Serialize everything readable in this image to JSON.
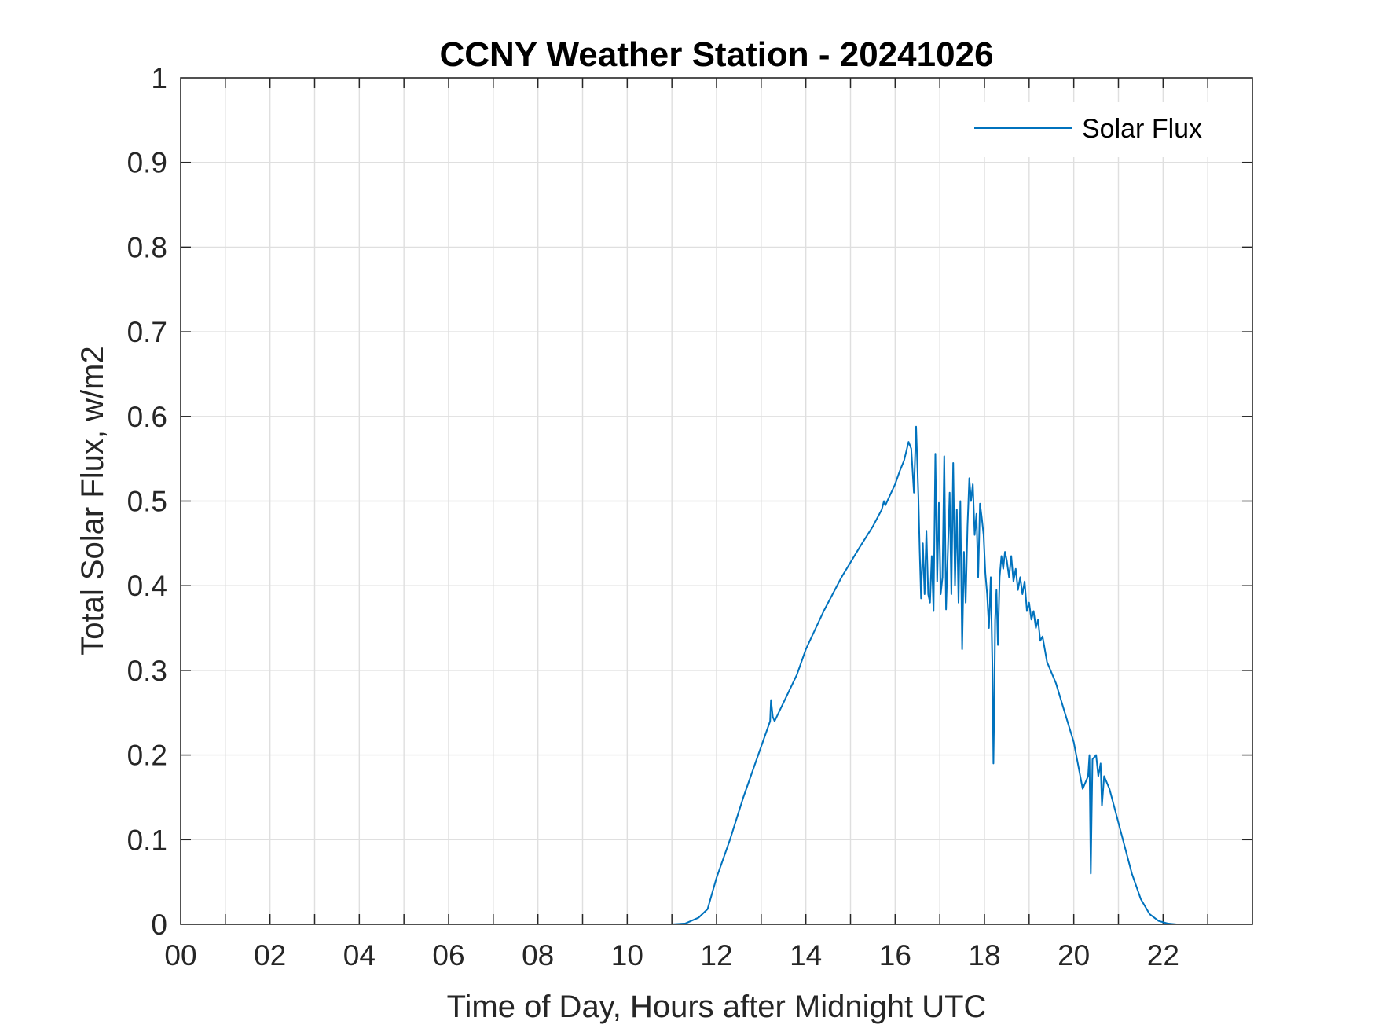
{
  "chart_data": {
    "type": "line",
    "title": "CCNY Weather Station - 20241026",
    "xlabel": "Time of Day, Hours after Midnight UTC",
    "ylabel": "Total Solar Flux, w/m2",
    "xlim": [
      0,
      24
    ],
    "ylim": [
      0,
      1
    ],
    "xticks": [
      0,
      2,
      4,
      6,
      8,
      10,
      12,
      14,
      16,
      18,
      20,
      22
    ],
    "xtick_labels": [
      "00",
      "02",
      "04",
      "06",
      "08",
      "10",
      "12",
      "14",
      "16",
      "18",
      "20",
      "22"
    ],
    "yticks": [
      0,
      0.1,
      0.2,
      0.3,
      0.4,
      0.5,
      0.6,
      0.7,
      0.8,
      0.9,
      1
    ],
    "ytick_labels": [
      "0",
      "0.1",
      "0.2",
      "0.3",
      "0.4",
      "0.5",
      "0.6",
      "0.7",
      "0.8",
      "0.9",
      "1"
    ],
    "grid": true,
    "legend_position": "top-right",
    "series": [
      {
        "name": "Solar Flux",
        "color": "#0072BD",
        "x": [
          0,
          11.0,
          11.3,
          11.6,
          11.8,
          12.0,
          12.3,
          12.6,
          12.9,
          13.0,
          13.2,
          13.22,
          13.26,
          13.3,
          13.5,
          13.8,
          14.0,
          14.4,
          14.8,
          15.2,
          15.5,
          15.7,
          15.75,
          15.78,
          16.0,
          16.1,
          16.2,
          16.3,
          16.36,
          16.42,
          16.47,
          16.52,
          16.55,
          16.58,
          16.62,
          16.66,
          16.7,
          16.74,
          16.78,
          16.82,
          16.86,
          16.9,
          16.94,
          16.98,
          17.02,
          17.06,
          17.1,
          17.14,
          17.18,
          17.22,
          17.26,
          17.3,
          17.34,
          17.38,
          17.42,
          17.46,
          17.5,
          17.54,
          17.58,
          17.62,
          17.66,
          17.7,
          17.74,
          17.78,
          17.82,
          17.86,
          17.9,
          17.94,
          17.98,
          18.02,
          18.06,
          18.1,
          18.14,
          18.18,
          18.2,
          18.22,
          18.24,
          18.27,
          18.3,
          18.34,
          18.38,
          18.42,
          18.46,
          18.5,
          18.55,
          18.6,
          18.65,
          18.7,
          18.75,
          18.8,
          18.85,
          18.9,
          18.95,
          19.0,
          19.05,
          19.1,
          19.15,
          19.2,
          19.25,
          19.3,
          19.4,
          19.6,
          19.8,
          20.0,
          20.2,
          20.32,
          20.35,
          20.38,
          20.4,
          20.42,
          20.5,
          20.55,
          20.6,
          20.63,
          20.68,
          20.8,
          21.0,
          21.3,
          21.5,
          21.7,
          21.9,
          22.1,
          22.3,
          22.6,
          23.0,
          24.0
        ],
        "y": [
          0,
          0,
          0.001,
          0.008,
          0.018,
          0.055,
          0.1,
          0.15,
          0.195,
          0.21,
          0.24,
          0.265,
          0.245,
          0.24,
          0.262,
          0.295,
          0.325,
          0.37,
          0.41,
          0.445,
          0.47,
          0.49,
          0.5,
          0.495,
          0.52,
          0.535,
          0.548,
          0.57,
          0.562,
          0.51,
          0.588,
          0.505,
          0.44,
          0.385,
          0.45,
          0.39,
          0.465,
          0.39,
          0.38,
          0.435,
          0.37,
          0.556,
          0.405,
          0.498,
          0.39,
          0.41,
          0.553,
          0.372,
          0.44,
          0.51,
          0.39,
          0.545,
          0.4,
          0.49,
          0.38,
          0.5,
          0.325,
          0.44,
          0.38,
          0.47,
          0.527,
          0.5,
          0.52,
          0.46,
          0.485,
          0.41,
          0.497,
          0.48,
          0.46,
          0.415,
          0.39,
          0.35,
          0.41,
          0.3,
          0.19,
          0.26,
          0.36,
          0.395,
          0.33,
          0.41,
          0.435,
          0.42,
          0.44,
          0.43,
          0.41,
          0.435,
          0.405,
          0.42,
          0.395,
          0.41,
          0.39,
          0.405,
          0.37,
          0.38,
          0.36,
          0.37,
          0.35,
          0.36,
          0.335,
          0.34,
          0.31,
          0.285,
          0.25,
          0.215,
          0.16,
          0.175,
          0.2,
          0.06,
          0.13,
          0.195,
          0.2,
          0.175,
          0.19,
          0.14,
          0.175,
          0.16,
          0.12,
          0.06,
          0.03,
          0.012,
          0.004,
          0.001,
          0,
          0,
          0,
          0
        ]
      }
    ]
  }
}
